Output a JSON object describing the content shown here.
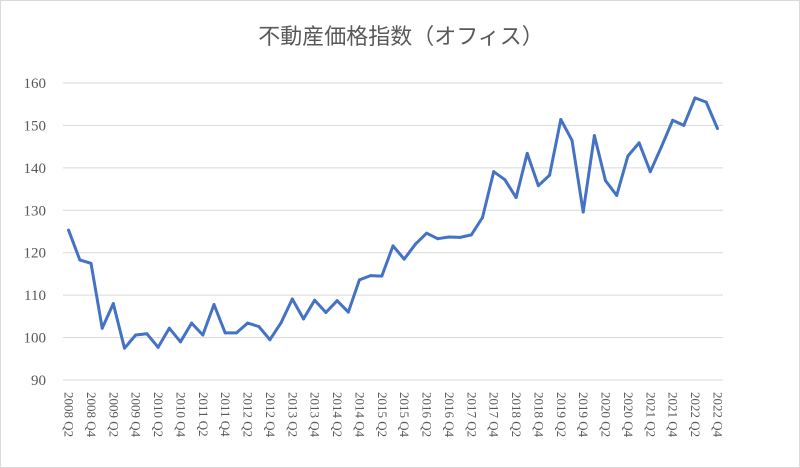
{
  "chart_data": {
    "type": "line",
    "title": "不動産価格指数（オフィス）",
    "xlabel": "",
    "ylabel": "",
    "ylim": [
      90,
      160
    ],
    "yticks": [
      90,
      100,
      110,
      120,
      130,
      140,
      150,
      160
    ],
    "grid": true,
    "legend": "none",
    "line_color": "#4472C4",
    "x": [
      "2008 Q2",
      "2008 Q3",
      "2008 Q4",
      "2009 Q1",
      "2009 Q2",
      "2009 Q3",
      "2009 Q4",
      "2010 Q1",
      "2010 Q2",
      "2010 Q3",
      "2010 Q4",
      "2011 Q1",
      "2011 Q2",
      "2011 Q3",
      "2011 Q4",
      "2012 Q1",
      "2012 Q2",
      "2012 Q3",
      "2012 Q4",
      "2013 Q1",
      "2013 Q2",
      "2013 Q3",
      "2013 Q4",
      "2014 Q1",
      "2014 Q2",
      "2014 Q3",
      "2014 Q4",
      "2015 Q1",
      "2015 Q2",
      "2015 Q3",
      "2015 Q4",
      "2016 Q1",
      "2016 Q2",
      "2016 Q3",
      "2016 Q4",
      "2017 Q1",
      "2017 Q2",
      "2017 Q3",
      "2017 Q4",
      "2018 Q1",
      "2018 Q2",
      "2018 Q3",
      "2018 Q4",
      "2019 Q1",
      "2019 Q2",
      "2019 Q3",
      "2019 Q4",
      "2020 Q1",
      "2020 Q2",
      "2020 Q3",
      "2020 Q4",
      "2021 Q1",
      "2021 Q2",
      "2021 Q3",
      "2021 Q4",
      "2022 Q1",
      "2022 Q2",
      "2022 Q3",
      "2022 Q4"
    ],
    "xtick_labels": [
      "2008 Q2",
      "2008 Q4",
      "2009 Q2",
      "2009 Q4",
      "2010 Q2",
      "2010 Q4",
      "2011 Q2",
      "2011 Q4",
      "2012 Q2",
      "2012 Q4",
      "2013 Q2",
      "2013 Q4",
      "2014 Q2",
      "2014 Q4",
      "2015 Q2",
      "2015 Q4",
      "2016 Q2",
      "2016 Q4",
      "2017 Q2",
      "2017 Q4",
      "2018 Q2",
      "2018 Q4",
      "2019 Q2",
      "2019 Q4",
      "2020 Q2",
      "2020 Q4",
      "2021 Q2",
      "2021 Q4",
      "2022 Q2",
      "2022 Q4"
    ],
    "series": [
      {
        "name": "不動産価格指数（オフィス）",
        "values": [
          125.3,
          118.3,
          117.5,
          102.2,
          108.0,
          97.5,
          100.6,
          100.9,
          97.7,
          102.2,
          99.0,
          103.4,
          100.6,
          107.8,
          101.1,
          101.1,
          103.4,
          102.6,
          99.5,
          103.5,
          109.1,
          104.4,
          108.8,
          105.9,
          108.7,
          106.0,
          113.6,
          114.6,
          114.5,
          121.6,
          118.5,
          122.0,
          124.6,
          123.3,
          123.7,
          123.6,
          124.2,
          128.3,
          139.1,
          137.2,
          133.0,
          143.4,
          135.8,
          138.3,
          151.4,
          146.5,
          129.6,
          147.6,
          137.0,
          133.5,
          142.8,
          145.9,
          139.1,
          145.0,
          151.2,
          150.0,
          156.5,
          155.5,
          149.3
        ]
      }
    ]
  }
}
